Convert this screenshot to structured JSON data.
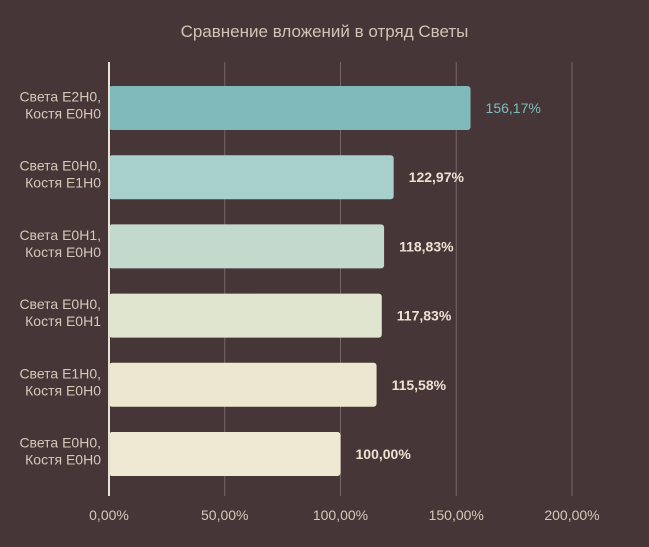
{
  "chart_data": {
    "type": "bar",
    "orientation": "horizontal",
    "title": "Сравнение вложений в отряд Светы",
    "xlabel": "",
    "ylabel": "",
    "xlim": [
      0,
      200
    ],
    "grid": true,
    "legend": "none",
    "categories": [
      [
        "Света E2H0,",
        "Костя E0H0"
      ],
      [
        "Света E0H0,",
        "Костя E1H0"
      ],
      [
        "Света E0H1,",
        "Костя E0H0"
      ],
      [
        "Света E0H0,",
        "Костя E0H1"
      ],
      [
        "Света E1H0,",
        "Костя E0H0"
      ],
      [
        "Света E0H0,",
        "Костя E0H0"
      ]
    ],
    "values": [
      156.17,
      122.97,
      118.83,
      117.83,
      115.58,
      100.0
    ],
    "value_labels": [
      "156,17%",
      "122,97%",
      "118,83%",
      "117,83%",
      "115,58%",
      "100,00%"
    ],
    "x_ticks": [
      0,
      50,
      100,
      150,
      200
    ],
    "x_tick_labels": [
      "0,00%",
      "50,00%",
      "100,00%",
      "150,00%",
      "200,00%"
    ],
    "bar_colors": [
      "#7fb9ba",
      "#a7d0cc",
      "#c2d9cc",
      "#e0e5cf",
      "#ede7cf",
      "#efe8d2"
    ],
    "colors": {
      "background": "#463638",
      "grid": "#756667",
      "axis": "#e9e2d6",
      "text": "#d6c8b8",
      "accent_label": "#7fbcbd"
    }
  }
}
